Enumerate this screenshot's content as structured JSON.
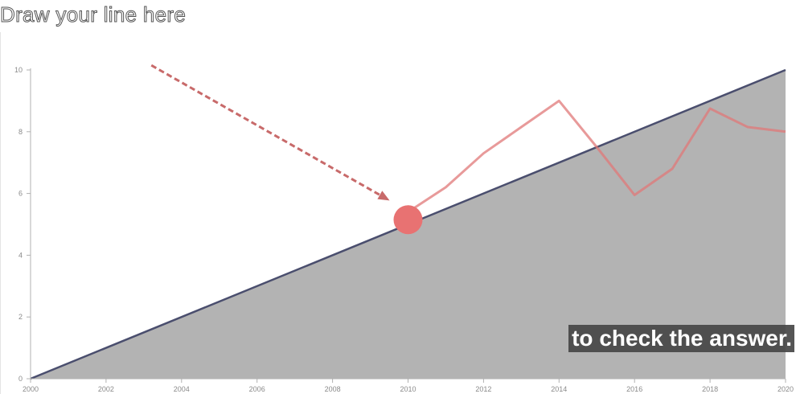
{
  "title": "Draw your line here",
  "caption": "to check the answer.",
  "colors": {
    "answer_line": "#4a4e6e",
    "area_fill": "#b3b3b3",
    "user_line": "#e07878",
    "hint_arrow": "#c86a6a",
    "handle": "#e87272",
    "caption_bg": "#464646"
  },
  "chart_data": {
    "type": "line",
    "x_ticks": [
      2000,
      2002,
      2004,
      2006,
      2008,
      2010,
      2012,
      2014,
      2016,
      2018,
      2020
    ],
    "y_ticks": [
      0,
      2,
      4,
      6,
      8,
      10
    ],
    "xlim": [
      2000,
      2020
    ],
    "ylim": [
      0,
      10
    ],
    "grid": false,
    "series": [
      {
        "role": "answer",
        "x": [
          2000,
          2020
        ],
        "y": [
          0,
          10
        ],
        "fill_below": true
      },
      {
        "role": "user-drawn",
        "x": [
          2010,
          2011,
          2012,
          2013,
          2014,
          2015,
          2016,
          2017,
          2018,
          2019,
          2020
        ],
        "y": [
          5.4,
          6.2,
          7.3,
          8.15,
          9.0,
          7.5,
          5.95,
          6.8,
          8.75,
          8.15,
          8.0
        ]
      }
    ],
    "drag_handle": {
      "x": 2010,
      "y": 5.15
    },
    "hint_arrow": {
      "from": {
        "x": 2003.2,
        "y": 10.15
      },
      "to": {
        "x": 2009.4,
        "y": 5.85
      }
    }
  }
}
